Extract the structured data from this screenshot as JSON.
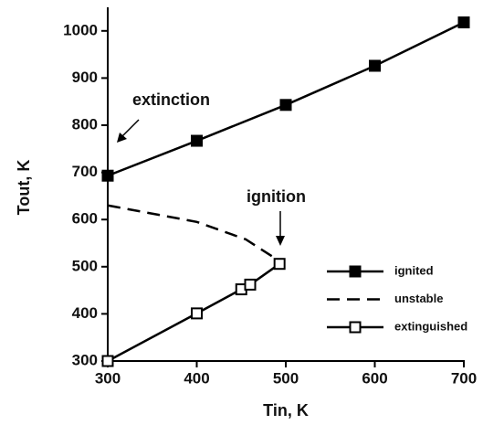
{
  "chart_data": {
    "type": "line",
    "xlabel": "Tin, K",
    "ylabel": "Tout, K",
    "annotations": [
      "extinction",
      "ignition"
    ],
    "xlim": [
      300,
      700
    ],
    "ylim": [
      300,
      1050
    ],
    "xticks": [
      300,
      400,
      500,
      600,
      700
    ],
    "yticks": [
      300,
      400,
      500,
      600,
      700,
      800,
      900,
      1000
    ],
    "legend": "lower right",
    "series": [
      {
        "name": "ignited",
        "color": "#000000",
        "marker": "filled",
        "dashed": false,
        "x": [
          300,
          400,
          500,
          600,
          700
        ],
        "values": [
          693,
          767,
          843,
          926,
          1018
        ]
      },
      {
        "name": "unstable",
        "color": "#000000",
        "marker": "none",
        "dashed": true,
        "x": [
          300,
          400,
          455,
          492
        ],
        "values": [
          630,
          595,
          558,
          513
        ]
      },
      {
        "name": "extinguished",
        "color": "#000000",
        "marker": "open",
        "dashed": false,
        "x": [
          300,
          400,
          450,
          460,
          493
        ],
        "values": [
          300,
          401,
          452,
          462,
          506
        ]
      }
    ]
  }
}
